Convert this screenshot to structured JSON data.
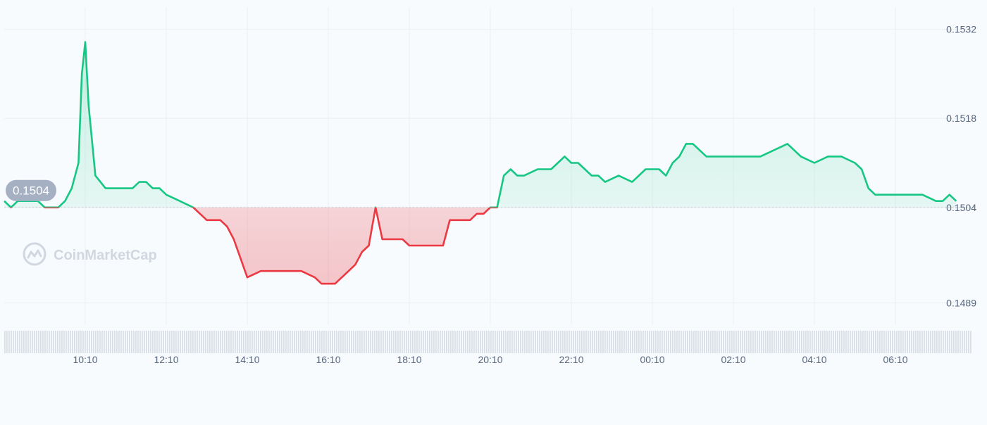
{
  "brand": {
    "name": "CoinMarketCap"
  },
  "colors": {
    "up": "#16c784",
    "down": "#ea3943",
    "grid": "#eceff3",
    "axis_text": "#58667e",
    "badge_bg": "#a6b0c3",
    "badge_text": "#ffffff",
    "watermark": "#d1d7e0",
    "volume": "#d9dee7",
    "baseline": "#c8ced8"
  },
  "chart_data": {
    "type": "area",
    "title": "",
    "xlabel": "",
    "ylabel": "",
    "baseline_value": 0.1504,
    "current_price_label": "0.1504",
    "y_ticks": [
      "0.1532",
      "0.1518",
      "0.1504",
      "0.1489"
    ],
    "x_ticks": [
      "10:10",
      "12:10",
      "14:10",
      "16:10",
      "18:10",
      "20:10",
      "22:10",
      "00:10",
      "02:10",
      "04:10",
      "06:10"
    ],
    "ylim": [
      0.14855,
      0.15355
    ],
    "grid": true,
    "legend": "none",
    "series": [
      {
        "x": [
          "08:10",
          "08:20",
          "08:30",
          "08:40",
          "08:50",
          "09:00",
          "09:10",
          "09:20",
          "09:30",
          "09:40",
          "09:50",
          "10:00",
          "10:05",
          "10:10",
          "10:15",
          "10:25",
          "10:40",
          "11:00",
          "11:10",
          "11:20",
          "11:30",
          "11:40",
          "11:50",
          "12:00",
          "12:10",
          "12:30",
          "12:50",
          "13:00",
          "13:10",
          "13:20",
          "13:30",
          "13:40",
          "13:50",
          "14:00",
          "14:10",
          "14:30",
          "14:50",
          "15:10",
          "15:30",
          "15:50",
          "16:00",
          "16:10",
          "16:20",
          "16:30",
          "16:40",
          "16:50",
          "17:00",
          "17:10",
          "17:20",
          "17:30",
          "17:40",
          "18:00",
          "18:10",
          "18:30",
          "18:50",
          "19:00",
          "19:10",
          "19:20",
          "19:40",
          "19:50",
          "20:00",
          "20:10",
          "20:20",
          "20:30",
          "20:40",
          "20:50",
          "21:00",
          "21:20",
          "21:40",
          "22:00",
          "22:10",
          "22:20",
          "22:30",
          "22:40",
          "22:50",
          "23:00",
          "23:20",
          "23:40",
          "00:00",
          "00:10",
          "00:20",
          "00:30",
          "00:40",
          "00:50",
          "01:00",
          "01:10",
          "01:30",
          "01:50",
          "02:10",
          "02:30",
          "02:50",
          "03:10",
          "03:30",
          "03:40",
          "03:50",
          "04:10",
          "04:30",
          "04:50",
          "05:10",
          "05:20",
          "05:30",
          "05:40",
          "05:50",
          "06:10",
          "06:30",
          "06:50",
          "07:10",
          "07:20",
          "07:30",
          "07:40"
        ],
        "values": [
          0.1505,
          0.1504,
          0.1505,
          0.1505,
          0.1505,
          0.1505,
          0.1504,
          0.1504,
          0.1504,
          0.1505,
          0.1507,
          0.1511,
          0.1525,
          0.153,
          0.152,
          0.1509,
          0.1507,
          0.1507,
          0.1507,
          0.1507,
          0.1508,
          0.1508,
          0.1507,
          0.1507,
          0.1506,
          0.1505,
          0.1504,
          0.1503,
          0.1502,
          0.1502,
          0.1502,
          0.1501,
          0.1499,
          0.1496,
          0.1493,
          0.1494,
          0.1494,
          0.1494,
          0.1494,
          0.1493,
          0.1492,
          0.1492,
          0.1492,
          0.1493,
          0.1494,
          0.1495,
          0.1497,
          0.1498,
          0.1504,
          0.1499,
          0.1499,
          0.1499,
          0.1498,
          0.1498,
          0.1498,
          0.1498,
          0.1502,
          0.1502,
          0.1502,
          0.1503,
          0.1503,
          0.1504,
          0.1504,
          0.1509,
          0.151,
          0.1509,
          0.1509,
          0.151,
          0.151,
          0.1512,
          0.1511,
          0.1511,
          0.151,
          0.1509,
          0.1509,
          0.1508,
          0.1509,
          0.1508,
          0.151,
          0.151,
          0.151,
          0.1509,
          0.1511,
          0.1512,
          0.1514,
          0.1514,
          0.1512,
          0.1512,
          0.1512,
          0.1512,
          0.1512,
          0.1513,
          0.1514,
          0.1513,
          0.1512,
          0.1511,
          0.1512,
          0.1512,
          0.1511,
          0.151,
          0.1507,
          0.1506,
          0.1506,
          0.1506,
          0.1506,
          0.1506,
          0.1505,
          0.1505,
          0.1506,
          0.1505
        ]
      }
    ]
  }
}
